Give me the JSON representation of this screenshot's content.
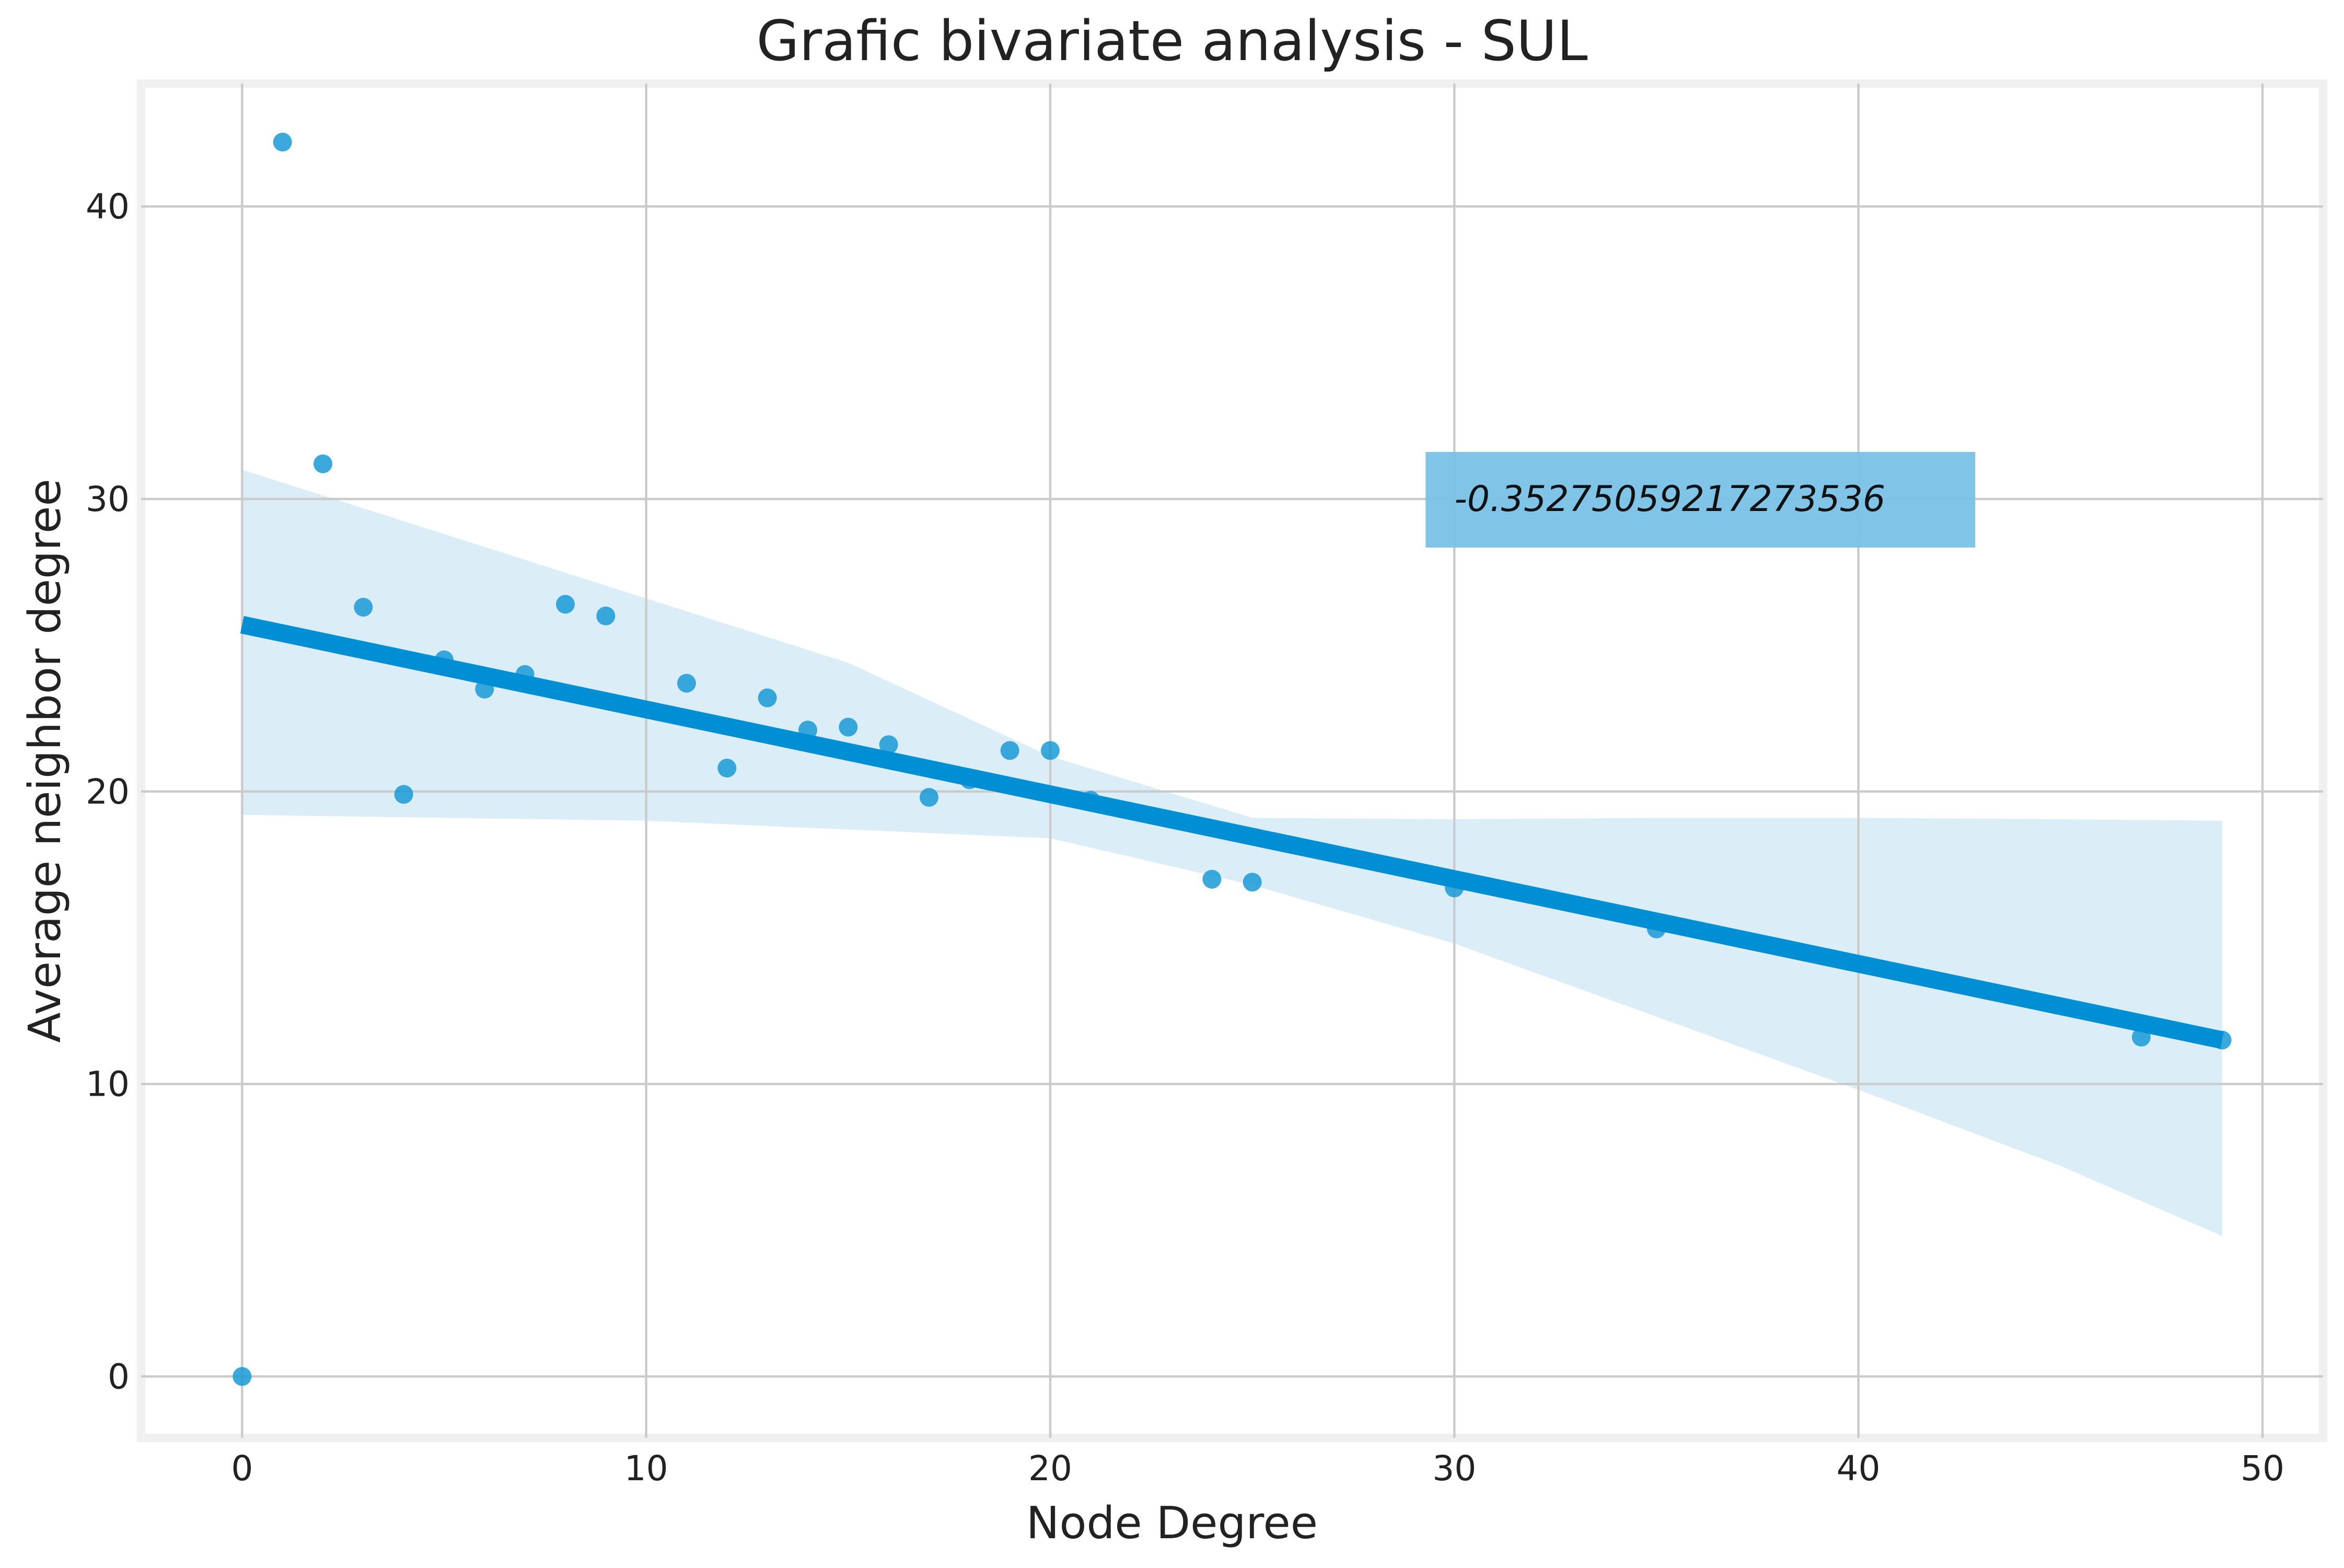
{
  "chart_data": {
    "type": "scatter",
    "title": "Grafic bivariate analysis - SUL",
    "xlabel": "Node Degree",
    "ylabel": "Average neighbor degree",
    "xlim": [
      -2.5,
      51.5
    ],
    "ylim": [
      -2.1,
      44.2
    ],
    "xticks": [
      0,
      10,
      20,
      30,
      40,
      50
    ],
    "yticks": [
      0,
      10,
      20,
      30,
      40
    ],
    "grid": true,
    "colors": {
      "points": "#1a9ad6",
      "regression": "#008fd5",
      "confidence_band": "#cfe8f6",
      "annotation_box": "#79c1e7",
      "grid": "#cbcbcb",
      "frame": "#f0f0f0"
    },
    "points": [
      {
        "x": 0,
        "y": 0
      },
      {
        "x": 1,
        "y": 42.2
      },
      {
        "x": 2,
        "y": 31.2
      },
      {
        "x": 3,
        "y": 26.3
      },
      {
        "x": 4,
        "y": 19.9
      },
      {
        "x": 5,
        "y": 24.5
      },
      {
        "x": 6,
        "y": 23.5
      },
      {
        "x": 7,
        "y": 24.0
      },
      {
        "x": 8,
        "y": 26.4
      },
      {
        "x": 9,
        "y": 26.0
      },
      {
        "x": 11,
        "y": 23.7
      },
      {
        "x": 12,
        "y": 20.8
      },
      {
        "x": 13,
        "y": 23.2
      },
      {
        "x": 14,
        "y": 22.1
      },
      {
        "x": 15,
        "y": 22.2
      },
      {
        "x": 16,
        "y": 21.6
      },
      {
        "x": 17,
        "y": 19.8
      },
      {
        "x": 18,
        "y": 20.4
      },
      {
        "x": 19,
        "y": 21.4
      },
      {
        "x": 20,
        "y": 21.4
      },
      {
        "x": 21,
        "y": 19.7
      },
      {
        "x": 24,
        "y": 17.0
      },
      {
        "x": 25,
        "y": 16.9
      },
      {
        "x": 30,
        "y": 16.7
      },
      {
        "x": 35,
        "y": 15.3
      },
      {
        "x": 47,
        "y": 11.6
      },
      {
        "x": 49,
        "y": 11.5
      }
    ],
    "regression_line": {
      "x": [
        0,
        49
      ],
      "y": [
        25.7,
        11.5
      ]
    },
    "confidence_band": {
      "x": [
        0,
        5,
        10,
        15,
        20,
        25,
        30,
        35,
        40,
        45,
        49
      ],
      "upper": [
        31.0,
        28.8,
        26.6,
        24.4,
        21.2,
        19.1,
        19.05,
        19.1,
        19.1,
        19.05,
        19.0
      ],
      "lower": [
        19.2,
        19.1,
        19.0,
        18.7,
        18.4,
        16.8,
        14.8,
        12.3,
        9.8,
        7.2,
        4.8
      ]
    },
    "annotation": {
      "text": "-0.35275059217273536",
      "x": 30,
      "y": 30
    }
  }
}
